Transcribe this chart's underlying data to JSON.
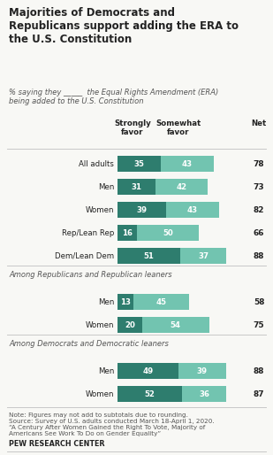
{
  "title": "Majorities of Democrats and\nRepublicans support adding the ERA to\nthe U.S. Constitution",
  "subtitle_part1": "% saying they ",
  "subtitle_underline": "_____",
  "subtitle_part2": " the Equal Rights Amendment (ERA)\nbeing added to the U.S. Constitution",
  "col_strong": "Strongly\nfavor",
  "col_somewhat": "Somewhat\nfavor",
  "col_net": "Net",
  "rows": [
    {
      "label": "All adults",
      "strong": 35,
      "somewhat": 43,
      "net": 78,
      "group": 0
    },
    {
      "label": "Men",
      "strong": 31,
      "somewhat": 42,
      "net": 73,
      "group": 0
    },
    {
      "label": "Women",
      "strong": 39,
      "somewhat": 43,
      "net": 82,
      "group": 0
    },
    {
      "label": "Rep/Lean Rep",
      "strong": 16,
      "somewhat": 50,
      "net": 66,
      "group": 0
    },
    {
      "label": "Dem/Lean Dem",
      "strong": 51,
      "somewhat": 37,
      "net": 88,
      "group": 0
    },
    {
      "label": "Men",
      "strong": 13,
      "somewhat": 45,
      "net": 58,
      "group": 1
    },
    {
      "label": "Women",
      "strong": 20,
      "somewhat": 54,
      "net": 75,
      "group": 1
    },
    {
      "label": "Men",
      "strong": 49,
      "somewhat": 39,
      "net": 88,
      "group": 2
    },
    {
      "label": "Women",
      "strong": 52,
      "somewhat": 36,
      "net": 87,
      "group": 2
    }
  ],
  "section_headers": [
    {
      "text": "Among Republicans and Republican leaners",
      "before_row": 5
    },
    {
      "text": "Among Democrats and Democratic leaners",
      "before_row": 7
    }
  ],
  "color_strong": "#2e7d6e",
  "color_somewhat": "#72c4b0",
  "color_bg": "#f8f8f5",
  "color_sep": "#c8c8c8",
  "color_text": "#222222",
  "color_subtext": "#555555",
  "note_line1": "Note: Figures may not add to subtotals due to rounding.",
  "note_line2": "Source: Survey of U.S. adults conducted March 18-April 1, 2020.",
  "note_line3": "“A Century After Women Gained the Right To Vote, Majority of",
  "note_line4": "Americans See Work To Do on Gender Equality”",
  "footer": "PEW RESEARCH CENTER",
  "bar_scale": 70
}
